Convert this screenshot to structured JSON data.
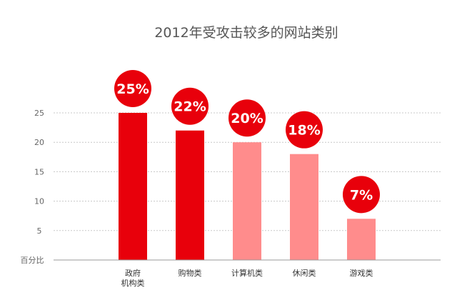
{
  "chart_data": {
    "type": "bar",
    "title": "2012年受攻击较多的网站类别",
    "ylabel": "百分比",
    "xlabel": "",
    "ylim": [
      0,
      25
    ],
    "yticks": [
      5,
      10,
      15,
      20,
      25
    ],
    "grid": true,
    "categories": [
      [
        "政府",
        "机构类"
      ],
      [
        "购物类"
      ],
      [
        "计算机类"
      ],
      [
        "休闲类"
      ],
      [
        "游戏类"
      ]
    ],
    "values": [
      25,
      22,
      20,
      18,
      7
    ],
    "data_labels": [
      "25%",
      "22%",
      "20%",
      "18%",
      "7%"
    ],
    "bar_colors": [
      "#e8000b",
      "#e8000b",
      "#ff8c8c",
      "#ff8c8c",
      "#ff8c8c"
    ],
    "label_circle_color": "#e8000b",
    "label_text_color": "#ffffff",
    "axis_color": "#999999",
    "grid_color": "#c8c8c8",
    "text_color": "#666666"
  }
}
